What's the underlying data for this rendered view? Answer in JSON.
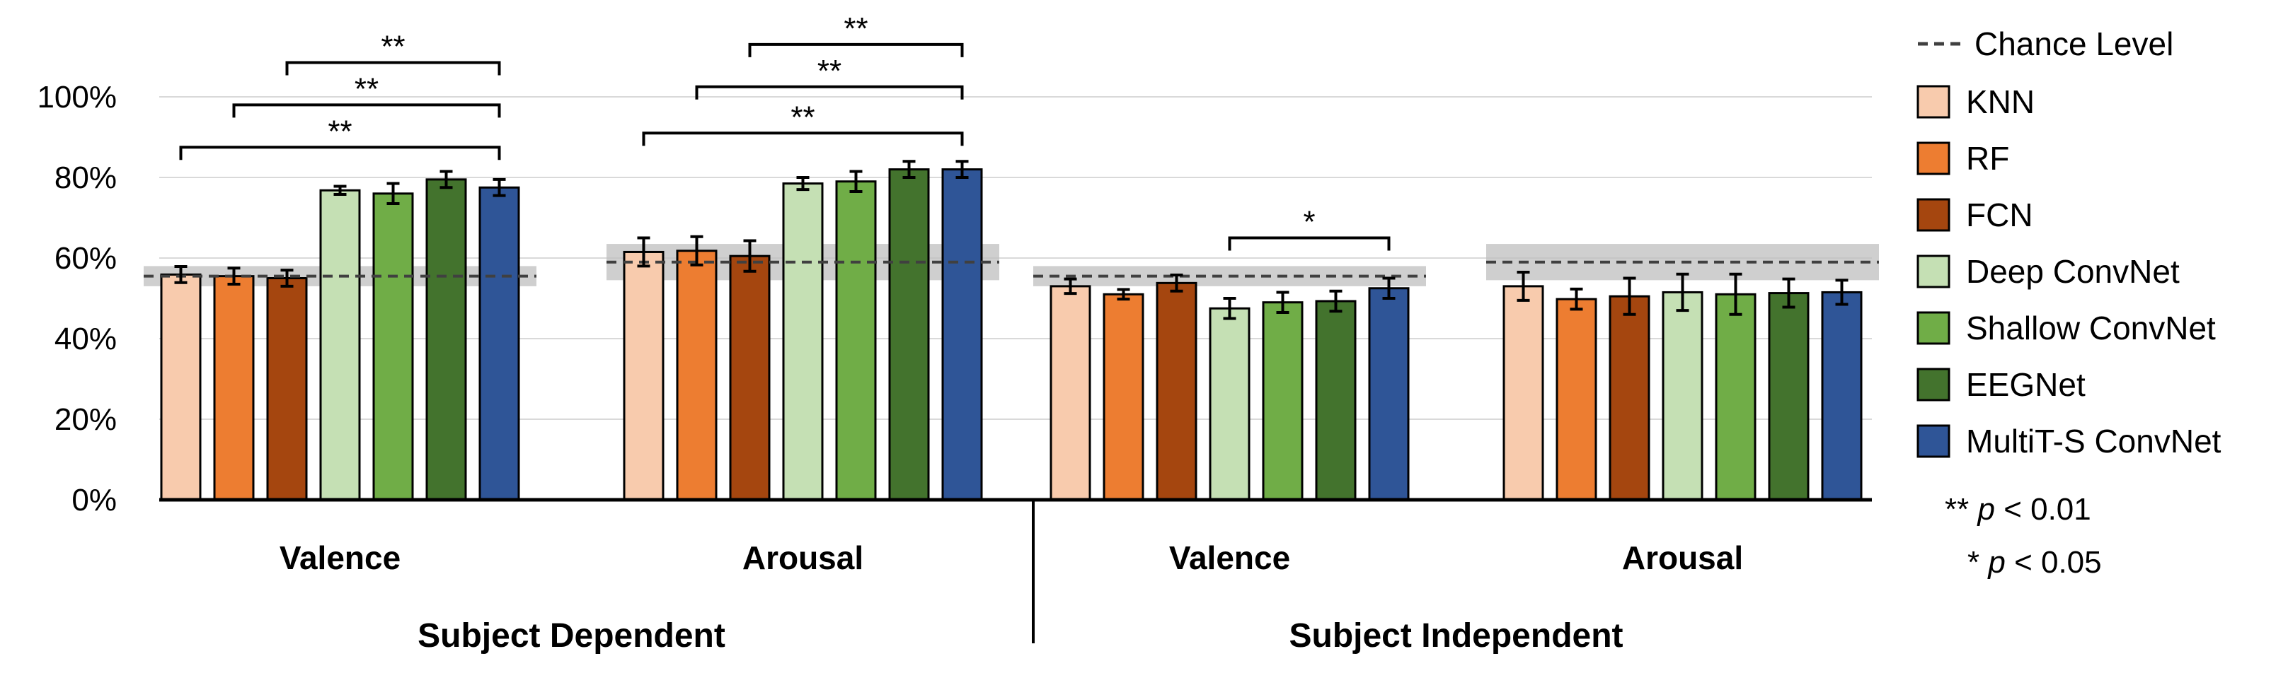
{
  "chart_data": {
    "type": "bar",
    "ylim": [
      0,
      100
    ],
    "yticks": [
      "0%",
      "20%",
      "40%",
      "60%",
      "80%",
      "100%"
    ],
    "ytick_values": [
      0,
      20,
      40,
      60,
      80,
      100
    ],
    "grid": true,
    "legend_position": "right",
    "groups": [
      {
        "label": "Subject Dependent",
        "conditions": [
          "Valence",
          "Arousal"
        ]
      },
      {
        "label": "Subject Independent",
        "conditions": [
          "Valence",
          "Arousal"
        ]
      }
    ],
    "categories": [
      "Valence",
      "Arousal",
      "Valence",
      "Arousal"
    ],
    "series": [
      {
        "name": "KNN",
        "color": "#F8CBAD",
        "values": [
          55.9,
          61.5,
          53.0,
          53.0
        ],
        "errors": [
          2.0,
          3.5,
          1.8,
          3.5
        ]
      },
      {
        "name": "RF",
        "color": "#ED7D31",
        "values": [
          55.5,
          61.8,
          51.0,
          49.8
        ],
        "errors": [
          2.0,
          3.5,
          1.2,
          2.5
        ]
      },
      {
        "name": "FCN",
        "color": "#A5460F",
        "values": [
          55.0,
          60.5,
          53.8,
          50.5
        ],
        "errors": [
          2.0,
          3.8,
          2.0,
          4.5
        ]
      },
      {
        "name": "Deep ConvNet",
        "color": "#C5E0B4",
        "values": [
          76.8,
          78.5,
          47.5,
          51.5
        ],
        "errors": [
          1.0,
          1.5,
          2.5,
          4.5
        ]
      },
      {
        "name": "Shallow ConvNet",
        "color": "#70AD47",
        "values": [
          76.0,
          79.0,
          49.0,
          51.0
        ],
        "errors": [
          2.5,
          2.5,
          2.5,
          5.0
        ]
      },
      {
        "name": "EEGNet",
        "color": "#43732D",
        "values": [
          79.5,
          82.0,
          49.3,
          51.3
        ],
        "errors": [
          2.0,
          2.0,
          2.5,
          3.5
        ]
      },
      {
        "name": "MultiT-S ConvNet",
        "color": "#2F5597",
        "values": [
          77.5,
          82.0,
          52.5,
          51.5
        ],
        "errors": [
          2.0,
          2.0,
          2.5,
          3.0
        ]
      }
    ],
    "chance_level": {
      "name": "Chance Level",
      "values": [
        55.5,
        59.0,
        55.5,
        59.0
      ],
      "band_halfwidth": [
        2.5,
        4.5,
        2.5,
        4.5
      ]
    },
    "significance": [
      {
        "condition": 0,
        "from": 0,
        "to": 6,
        "label": "**",
        "y": 87.5
      },
      {
        "condition": 0,
        "from": 1,
        "to": 6,
        "label": "**",
        "y": 98.0
      },
      {
        "condition": 0,
        "from": 2,
        "to": 6,
        "label": "**",
        "y": 108.5
      },
      {
        "condition": 1,
        "from": 0,
        "to": 6,
        "label": "**",
        "y": 91.0
      },
      {
        "condition": 1,
        "from": 1,
        "to": 6,
        "label": "**",
        "y": 102.5
      },
      {
        "condition": 1,
        "from": 2,
        "to": 6,
        "label": "**",
        "y": 113.0
      },
      {
        "condition": 2,
        "from": 3,
        "to": 6,
        "label": "*",
        "y": 65.0
      }
    ],
    "notes": [
      {
        "stars": "**",
        "p": "p",
        "rest": " < 0.01"
      },
      {
        "stars": "*",
        "p": "p",
        "rest": " < 0.05"
      }
    ]
  }
}
